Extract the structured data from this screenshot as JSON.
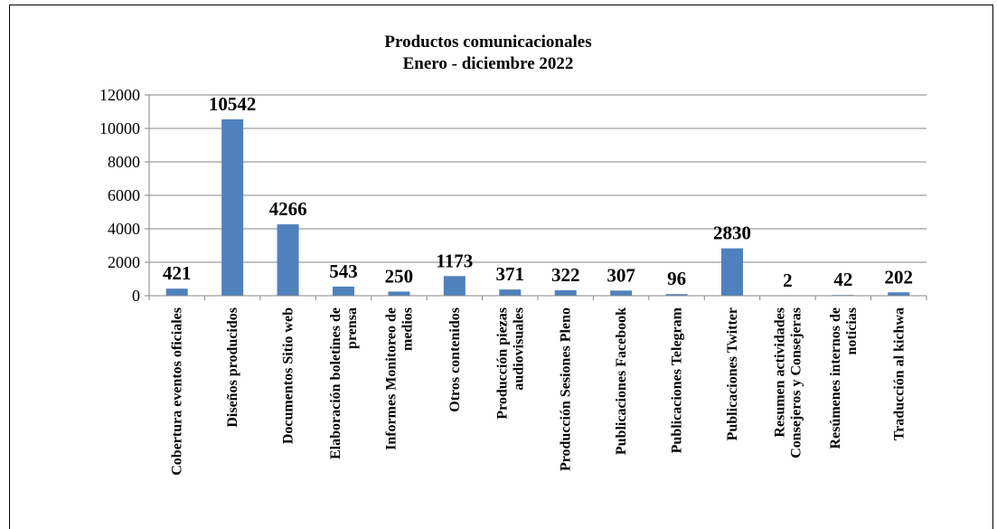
{
  "chart_data": {
    "type": "bar",
    "title": "Productos comunicacionales",
    "subtitle": "Enero - diciembre 2022",
    "categories": [
      "Cobertura eventos oficiales",
      "Diseños producidos",
      "Documentos Sitio web",
      "Elaboración boletines de prensa",
      "Informes Monitoreo de medios",
      "Otros contenidos",
      "Producción piezas audiovisuales",
      "Producción Sesiones Pleno",
      "Publicaciones Facebook",
      "Publicaciones Telegram",
      "Publicaciones Twitter",
      "Resumen actividades Consejeros y Consejeras",
      "Resúmenes internos de noticias",
      "Traducción al kichwa"
    ],
    "values": [
      421,
      10542,
      4266,
      543,
      250,
      1173,
      371,
      322,
      307,
      96,
      2830,
      2,
      42,
      202
    ],
    "color": "#4f81bd",
    "ylim": [
      0,
      12000
    ],
    "yticks": [
      0,
      2000,
      4000,
      6000,
      8000,
      10000,
      12000
    ],
    "grid": true
  }
}
